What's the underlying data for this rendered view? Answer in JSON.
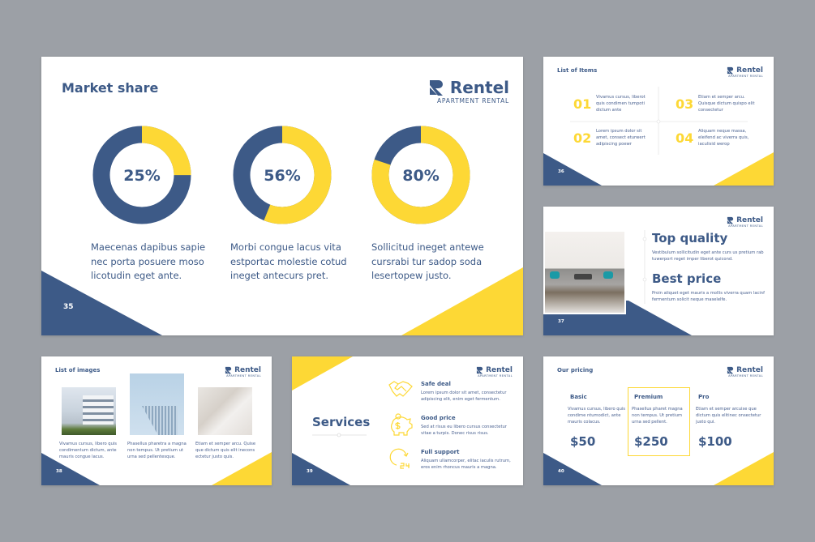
{
  "colors": {
    "navy": "#3d5a87",
    "yellow": "#fdd835",
    "background": "#9ca0a6"
  },
  "brand": {
    "name": "Rentel",
    "tagline": "APARTMENT RENTAL",
    "icon": "rentel-r-logo-icon"
  },
  "market_share": {
    "title": "Market share",
    "page": "35",
    "chart_data": {
      "type": "pie",
      "variant": "donut",
      "series": [
        {
          "value": 25,
          "label": "25%"
        },
        {
          "value": 56,
          "label": "56%"
        },
        {
          "value": 80,
          "label": "80%"
        }
      ]
    },
    "captions": [
      [
        "Maecenas dapibus sapie",
        "nec porta posuere moso",
        "licotudin eget ante."
      ],
      [
        "Morbi congue lacus vita",
        "estportac molestie cotud",
        "ineget antecurs pret."
      ],
      [
        "Sollicitud ineget antewe",
        "cursrabi tur sadop soda",
        "lesertopew justo."
      ]
    ]
  },
  "list_items": {
    "title": "List of Items",
    "page": "36",
    "items": [
      {
        "num": "01",
        "text": "Vivamus cursus, liberot quis condimen tumpoti dictum ante"
      },
      {
        "num": "02",
        "text": "Lorem ipsum dolor sit amet, consect eturwert adipiscing poewr"
      },
      {
        "num": "03",
        "text": "Etiam et semper arcu. Quisque dictum quispo elit consectetur"
      },
      {
        "num": "04",
        "text": "Aliquam neque massa, eleifend ac viverra quis, iaculisid werop"
      }
    ]
  },
  "quality": {
    "page": "37",
    "blocks": [
      {
        "heading": "Top quality",
        "text": "Vestibulum sollicitudin eget ante curs us pretium rab tuwerport reget imper liberot quicond."
      },
      {
        "heading": "Best price",
        "text": "Proin aliquet eget mauris a mollis viverra quam lacinf fermentum solicit neque maselelfe."
      }
    ]
  },
  "images": {
    "title": "List of images",
    "page": "38",
    "captions": [
      "Vivamus cursus, libero quis condimentum dictum, ante mauris congue lacus.",
      "Phasellus pharetra a magna non tempus. Ut pretium ut urna sed pellentesque.",
      "Etiam et semper arcu. Quise que dictum quis elit inecons ectetur justo quis."
    ]
  },
  "services": {
    "title": "Services",
    "page": "39",
    "items": [
      {
        "icon": "handshake-icon",
        "heading": "Safe deal",
        "text": "Lorem ipsum dolor sit amet, consectetur adipiscing elit, enim eget fermentum."
      },
      {
        "icon": "piggy-bank-icon",
        "heading": "Good price",
        "text": "Sed at risus eu libero cursus consectetur vitae a turpis. Donec risus risus."
      },
      {
        "icon": "support-24-icon",
        "heading": "Full support",
        "text": "Aliquam ullamcorper, elitac iaculis rutrum, eros enim rhoncus mauris a magna."
      }
    ]
  },
  "pricing": {
    "title": "Our pricing",
    "page": "40",
    "plans": [
      {
        "name": "Basic",
        "text": "Vivamus cursus, libero quis condime ntumodict, ante mauris colacus.",
        "price": "$50"
      },
      {
        "name": "Premium",
        "text": "Phasellus pharet magna non tempus. Ut pretium urna sed pellent.",
        "price": "$250",
        "highlighted": true
      },
      {
        "name": "Pro",
        "text": "Etiam et semper arcuise que dictum quis elitinec onsectetur justo qui.",
        "price": "$100"
      }
    ]
  }
}
